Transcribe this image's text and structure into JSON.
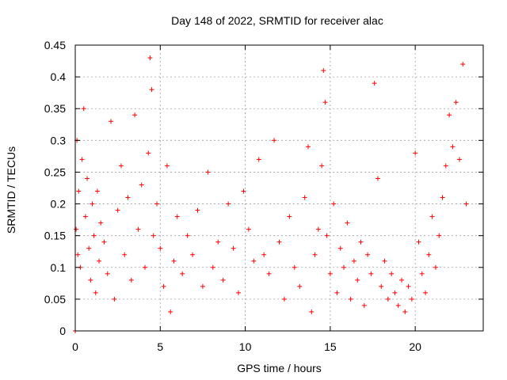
{
  "chart_data": {
    "type": "scatter",
    "title": "Day 148 of 2022, SRMTID for receiver alac",
    "xlabel": "GPS time / hours",
    "ylabel": "SRMTID / TECUs",
    "xlim": [
      0,
      24
    ],
    "ylim": [
      0,
      0.45
    ],
    "xticks": [
      0,
      5,
      10,
      15,
      20
    ],
    "yticks": [
      0,
      0.05,
      0.1,
      0.15,
      0.2,
      0.25,
      0.3,
      0.35,
      0.4,
      0.45
    ],
    "xtick_labels": [
      "0",
      "5",
      "10",
      "15",
      "20"
    ],
    "ytick_labels": [
      "0",
      "0.05",
      "0.1",
      "0.15",
      "0.2",
      "0.25",
      "0.3",
      "0.35",
      "0.4",
      "0.45"
    ],
    "grid": true,
    "marker": "+",
    "color": "#ff0000",
    "series": [
      {
        "name": "SRMTID",
        "x": [
          0.0,
          0.05,
          0.1,
          0.15,
          0.2,
          0.3,
          0.4,
          0.5,
          0.6,
          0.7,
          0.8,
          0.9,
          1.0,
          1.1,
          1.2,
          1.3,
          1.4,
          1.5,
          1.7,
          1.9,
          2.1,
          2.3,
          2.5,
          2.7,
          2.9,
          3.1,
          3.3,
          3.5,
          3.7,
          3.9,
          4.1,
          4.3,
          4.4,
          4.5,
          4.6,
          4.8,
          5.0,
          5.2,
          5.4,
          5.6,
          5.8,
          6.0,
          6.3,
          6.6,
          6.9,
          7.2,
          7.5,
          7.8,
          8.1,
          8.4,
          8.7,
          9.0,
          9.3,
          9.6,
          9.9,
          10.2,
          10.5,
          10.8,
          11.1,
          11.4,
          11.7,
          12.0,
          12.3,
          12.6,
          12.9,
          13.2,
          13.5,
          13.7,
          13.9,
          14.1,
          14.3,
          14.5,
          14.6,
          14.7,
          14.8,
          15.0,
          15.2,
          15.4,
          15.6,
          15.8,
          16.0,
          16.2,
          16.4,
          16.6,
          16.8,
          17.0,
          17.2,
          17.4,
          17.6,
          17.8,
          18.0,
          18.2,
          18.4,
          18.6,
          18.8,
          19.0,
          19.2,
          19.4,
          19.6,
          19.8,
          20.0,
          20.2,
          20.4,
          20.6,
          20.8,
          21.0,
          21.2,
          21.4,
          21.6,
          21.8,
          22.0,
          22.2,
          22.4,
          22.6,
          22.8,
          23.0
        ],
        "y": [
          0.0,
          0.16,
          0.3,
          0.12,
          0.22,
          0.1,
          0.27,
          0.35,
          0.18,
          0.24,
          0.13,
          0.08,
          0.2,
          0.15,
          0.06,
          0.22,
          0.11,
          0.17,
          0.14,
          0.09,
          0.33,
          0.05,
          0.19,
          0.26,
          0.12,
          0.21,
          0.08,
          0.34,
          0.16,
          0.23,
          0.1,
          0.28,
          0.43,
          0.38,
          0.15,
          0.2,
          0.13,
          0.07,
          0.26,
          0.03,
          0.11,
          0.18,
          0.09,
          0.15,
          0.12,
          0.19,
          0.07,
          0.25,
          0.1,
          0.14,
          0.08,
          0.2,
          0.13,
          0.06,
          0.22,
          0.16,
          0.11,
          0.27,
          0.12,
          0.09,
          0.3,
          0.14,
          0.05,
          0.18,
          0.1,
          0.07,
          0.21,
          0.29,
          0.03,
          0.12,
          0.16,
          0.26,
          0.41,
          0.36,
          0.15,
          0.09,
          0.2,
          0.06,
          0.13,
          0.1,
          0.17,
          0.05,
          0.11,
          0.08,
          0.14,
          0.04,
          0.12,
          0.09,
          0.39,
          0.24,
          0.07,
          0.11,
          0.05,
          0.09,
          0.06,
          0.04,
          0.08,
          0.03,
          0.07,
          0.05,
          0.28,
          0.14,
          0.09,
          0.06,
          0.12,
          0.18,
          0.1,
          0.15,
          0.21,
          0.26,
          0.34,
          0.29,
          0.36,
          0.27,
          0.42,
          0.2
        ]
      }
    ]
  }
}
